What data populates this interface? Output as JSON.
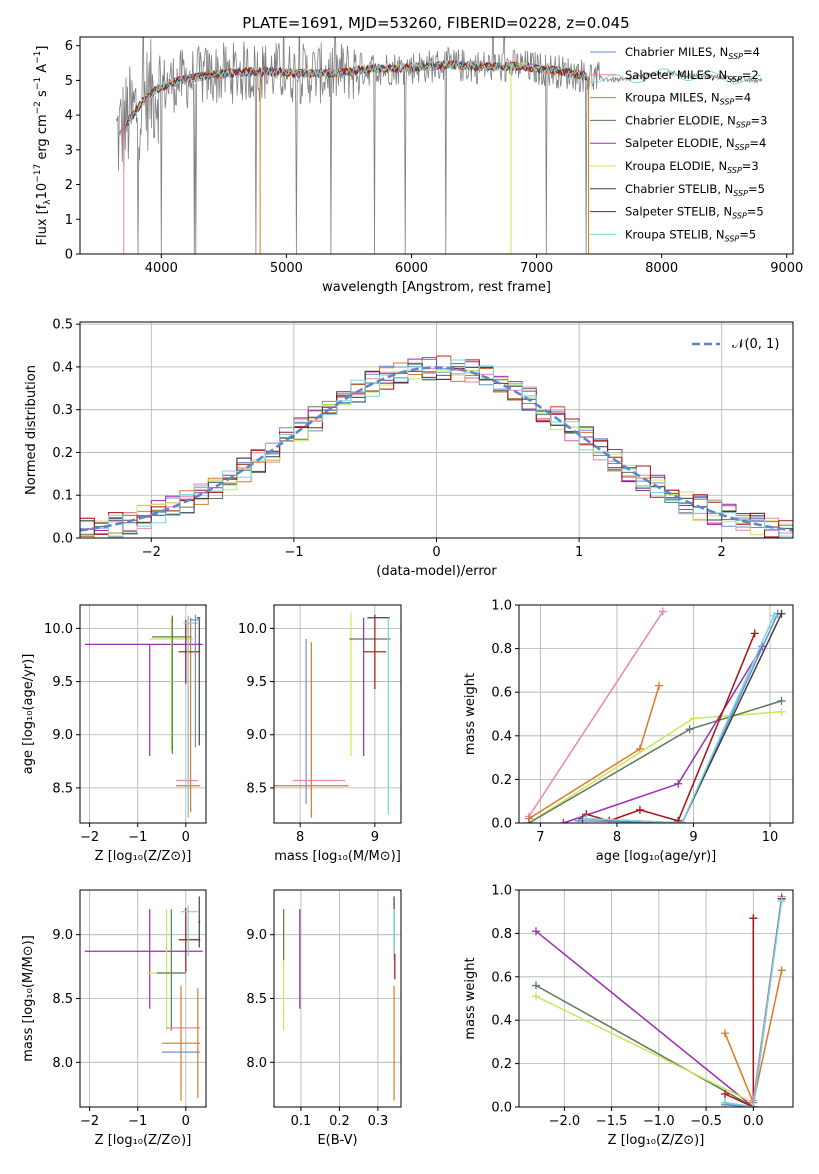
{
  "figure_title": "PLATE=1691, MJD=53260, FIBERID=0228, z=0.045",
  "colors": [
    "#6a8fd6",
    "#e884b8",
    "#d97a2a",
    "#5a7a5a",
    "#9b2fb0",
    "#c8e85a",
    "#404040",
    "#aa1111",
    "#7ad4dc"
  ],
  "chart_data": [
    {
      "id": "spectrum",
      "type": "line",
      "title": "PLATE=1691, MJD=53260, FIBERID=0228, z=0.045",
      "xlabel": "wavelength [Angstrom, rest frame]",
      "ylabel_parts": [
        "Flux [f",
        "λ",
        "10",
        "−17",
        " erg cm",
        "−2",
        " s",
        "−1",
        " A",
        "−1",
        "]"
      ],
      "xlim": [
        3350,
        9050
      ],
      "ylim": [
        0,
        6.25
      ],
      "xticks": [
        "4000",
        "5000",
        "6000",
        "7000",
        "8000",
        "9000"
      ],
      "yticks": [
        "0",
        "1",
        "2",
        "3",
        "4",
        "5",
        "6"
      ],
      "legend_position": "upper-right",
      "series": [
        {
          "name": "Chabrier MILES, N",
          "sub": "SSP",
          "suffix": "=4",
          "color": "#6a8fd6"
        },
        {
          "name": "Salpeter MILES, N",
          "sub": "SSP",
          "suffix": "=2",
          "color": "#e884b8"
        },
        {
          "name": "Kroupa MILES, N",
          "sub": "SSP",
          "suffix": "=4",
          "color": "#d97a2a"
        },
        {
          "name": "Chabrier ELODIE, N",
          "sub": "SSP",
          "suffix": "=3",
          "color": "#5a7a5a"
        },
        {
          "name": "Salpeter ELODIE, N",
          "sub": "SSP",
          "suffix": "=4",
          "color": "#9b2fb0"
        },
        {
          "name": "Kroupa ELODIE, N",
          "sub": "SSP",
          "suffix": "=3",
          "color": "#c8e85a"
        },
        {
          "name": "Chabrier STELIB, N",
          "sub": "SSP",
          "suffix": "=5",
          "color": "#404040"
        },
        {
          "name": "Salpeter STELIB, N",
          "sub": "SSP",
          "suffix": "=5",
          "color": "#aa1111"
        },
        {
          "name": "Kroupa STELIB, N",
          "sub": "SSP",
          "suffix": "=5",
          "color": "#7ad4dc"
        }
      ],
      "continuum": {
        "x": [
          3650,
          3750,
          3850,
          3950,
          4050,
          4150,
          4300,
          4500,
          4700,
          4900,
          5100,
          5300,
          5500,
          5700,
          5900,
          6100,
          6300,
          6500,
          6700,
          6900,
          7100,
          7300,
          7500,
          7700,
          7900,
          8100,
          8300,
          8500,
          8700,
          8800
        ],
        "y": [
          3.4,
          3.9,
          4.4,
          4.7,
          4.9,
          5.0,
          5.1,
          5.2,
          5.25,
          5.25,
          5.2,
          5.2,
          5.25,
          5.35,
          5.35,
          5.4,
          5.45,
          5.4,
          5.4,
          5.4,
          5.3,
          5.2,
          5.05,
          5.0,
          5.15,
          5.2,
          5.1,
          5.1,
          5.0,
          5.0
        ]
      }
    },
    {
      "id": "residuals",
      "type": "histogram",
      "xlabel": "(data-model)/error",
      "ylabel": "Normed distribution",
      "xlim": [
        -2.5,
        2.5
      ],
      "ylim": [
        0,
        0.505
      ],
      "xticks": [
        "−2",
        "−1",
        "0",
        "1",
        "2"
      ],
      "yticks": [
        "0.0",
        "0.1",
        "0.2",
        "0.3",
        "0.4",
        "0.5"
      ],
      "legend": "𝒩(0, 1)",
      "legend_position": "upper-right",
      "bin_width": 0.1,
      "bin_start": -2.5,
      "gaussian": {
        "mean": 0,
        "sigma": 1
      }
    },
    {
      "id": "age-vs-Z",
      "type": "errorbar",
      "xlabel": "Z [log₁₀(Z/Z⊙)]",
      "ylabel": "age  [log₁₀(age/yr)]",
      "xlim": [
        -2.2,
        0.42
      ],
      "ylim": [
        8.17,
        10.22
      ],
      "xticks": [
        "−2",
        "−1",
        "0"
      ],
      "yticks": [
        "8.5",
        "9.0",
        "9.5",
        "10.0"
      ],
      "points": [
        {
          "c": "#9b2fb0",
          "x": -0.75,
          "xerr": [
            1.35,
            1.1
          ],
          "y": 9.85,
          "yerr": [
            1.05,
            0
          ]
        },
        {
          "c": "#c8e85a",
          "x": -0.3,
          "xerr": [
            0.45,
            0.45
          ],
          "y": 9.9,
          "yerr": [
            1.05,
            0.2
          ]
        },
        {
          "c": "#5a7a5a",
          "x": -0.28,
          "xerr": [
            0.42,
            0.4
          ],
          "y": 9.92,
          "yerr": [
            1.1,
            0.2
          ]
        },
        {
          "c": "#e884b8",
          "x": 0.05,
          "xerr": [
            0.25,
            0.2
          ],
          "y": 8.57,
          "yerr": [
            0.35,
            1.55
          ]
        },
        {
          "c": "#d97a2a",
          "x": 0.1,
          "xerr": [
            0.3,
            0.2
          ],
          "y": 8.52,
          "yerr": [
            0.25,
            1.58
          ]
        },
        {
          "c": "#aa1111",
          "x": 0.0,
          "xerr": [
            0.15,
            0.3
          ],
          "y": 9.78,
          "yerr": [
            0.3,
            0.3
          ]
        },
        {
          "c": "#7ad4dc",
          "x": 0.05,
          "xerr": [
            0.1,
            0.2
          ],
          "y": 10.05,
          "yerr": [
            1.8,
            0.05
          ]
        },
        {
          "c": "#404040",
          "x": 0.28,
          "xerr": [
            0.05,
            0.02
          ],
          "y": 10.1,
          "yerr": [
            1.2,
            0.0
          ]
        },
        {
          "c": "#6a8fd6",
          "x": 0.2,
          "xerr": [
            0.1,
            0.1
          ],
          "y": 10.08,
          "yerr": [
            1.2,
            0.05
          ]
        }
      ]
    },
    {
      "id": "age-vs-mass",
      "type": "errorbar",
      "xlabel": "mass [log₁₀(M/M⊙)]",
      "ylabel": "",
      "xlim": [
        7.65,
        9.35
      ],
      "ylim": [
        8.17,
        10.22
      ],
      "xticks": [
        "8",
        "9"
      ],
      "yticks": [
        "8.5",
        "9.0",
        "9.5",
        "10.0"
      ],
      "points": [
        {
          "c": "#6a8fd6",
          "x": 8.08,
          "xerr": [
            0,
            0
          ],
          "y": 9.0,
          "yerr": [
            0.65,
            0.9
          ]
        },
        {
          "c": "#e884b8",
          "x": 8.25,
          "xerr": [
            0.35,
            0.35
          ],
          "y": 8.57,
          "yerr": [
            0,
            0
          ]
        },
        {
          "c": "#d97a2a",
          "x": 8.15,
          "xerr": [
            0.5,
            0.5
          ],
          "y": 8.52,
          "yerr": [
            0.3,
            1.35
          ]
        },
        {
          "c": "#c8e85a",
          "x": 8.68,
          "xerr": [
            0,
            0
          ],
          "y": 9.6,
          "yerr": [
            0.8,
            0.55
          ]
        },
        {
          "c": "#5a7a5a",
          "x": 8.96,
          "xerr": [
            0.3,
            0.25
          ],
          "y": 9.9,
          "yerr": [
            0,
            0
          ]
        },
        {
          "c": "#9b2fb0",
          "x": 8.85,
          "xerr": [
            0,
            0
          ],
          "y": 9.85,
          "yerr": [
            1.05,
            0.25
          ]
        },
        {
          "c": "#aa1111",
          "x": 9.0,
          "xerr": [
            0.15,
            0.15
          ],
          "y": 9.78,
          "yerr": [
            0.35,
            0.35
          ]
        },
        {
          "c": "#404040",
          "x": 9.05,
          "xerr": [
            0.15,
            0.15
          ],
          "y": 10.1,
          "yerr": [
            0,
            0
          ]
        },
        {
          "c": "#7ad4dc",
          "x": 9.18,
          "xerr": [
            0,
            0
          ],
          "y": 10.05,
          "yerr": [
            1.8,
            0.05
          ]
        }
      ]
    },
    {
      "id": "mass-weight-vs-age",
      "type": "line",
      "xlabel": "age  [log₁₀(age/yr)]",
      "ylabel": "mass weight",
      "xlim": [
        6.72,
        10.3
      ],
      "ylim": [
        0,
        1
      ],
      "xticks": [
        "7",
        "8",
        "9",
        "10"
      ],
      "yticks": [
        "0.0",
        "0.2",
        "0.4",
        "0.6",
        "0.8",
        "1.0"
      ],
      "series": [
        {
          "c": "#e884b8",
          "x": [
            6.85,
            8.6
          ],
          "y": [
            0.03,
            0.97
          ]
        },
        {
          "c": "#d97a2a",
          "x": [
            6.85,
            8.3,
            8.55
          ],
          "y": [
            0.02,
            0.34,
            0.63
          ]
        },
        {
          "c": "#c8e85a",
          "x": [
            6.85,
            9.0,
            10.15
          ],
          "y": [
            0.0,
            0.48,
            0.51
          ]
        },
        {
          "c": "#5a7a5a",
          "x": [
            6.85,
            8.95,
            10.15
          ],
          "y": [
            0.0,
            0.43,
            0.56
          ]
        },
        {
          "c": "#9b2fb0",
          "x": [
            7.3,
            8.8,
            9.9
          ],
          "y": [
            0.0,
            0.18,
            0.81
          ]
        },
        {
          "c": "#aa1111",
          "x": [
            7.6,
            7.9,
            8.3,
            8.8,
            9.8
          ],
          "y": [
            0.04,
            0.01,
            0.06,
            0.01,
            0.87
          ]
        },
        {
          "c": "#6a8fd6",
          "x": [
            7.5,
            8.85,
            10.1
          ],
          "y": [
            0.01,
            0.0,
            0.96
          ]
        },
        {
          "c": "#404040",
          "x": [
            7.55,
            8.85,
            10.15
          ],
          "y": [
            0.02,
            0.0,
            0.96
          ]
        },
        {
          "c": "#7ad4dc",
          "x": [
            7.6,
            8.85,
            10.05
          ],
          "y": [
            0.02,
            0.0,
            0.95
          ]
        }
      ]
    },
    {
      "id": "mass-vs-Z",
      "type": "errorbar",
      "xlabel": "Z [log₁₀(Z/Z⊙)]",
      "ylabel": "mass [log₁₀(M/M⊙)]",
      "xlim": [
        -2.2,
        0.42
      ],
      "ylim": [
        7.65,
        9.35
      ],
      "xticks": [
        "−2",
        "−1",
        "0"
      ],
      "yticks": [
        "8.0",
        "8.5",
        "9.0"
      ],
      "points": [
        {
          "c": "#9b2fb0",
          "x": -0.75,
          "xerr": [
            1.35,
            1.1
          ],
          "y": 8.87,
          "yerr": [
            0.45,
            0.33
          ]
        },
        {
          "c": "#c8e85a",
          "x": -0.4,
          "xerr": [
            0.4,
            0.4
          ],
          "y": 8.7,
          "yerr": [
            0.45,
            0.5
          ]
        },
        {
          "c": "#5a7a5a",
          "x": -0.3,
          "xerr": [
            0.3,
            0.3
          ],
          "y": 8.7,
          "yerr": [
            0.45,
            0.5
          ]
        },
        {
          "c": "#e884b8",
          "x": -0.05,
          "xerr": [
            0.35,
            0.35
          ],
          "y": 8.27,
          "yerr": [
            0,
            0
          ]
        },
        {
          "c": "#d97a2a",
          "x": -0.1,
          "xerr": [
            0.4,
            0.4
          ],
          "y": 8.15,
          "yerr": [
            0.45,
            0.45
          ]
        },
        {
          "c": "#6a8fd6",
          "x": -0.1,
          "xerr": [
            0.4,
            0.4
          ],
          "y": 8.08,
          "yerr": [
            0,
            0
          ]
        },
        {
          "c": "#aa1111",
          "x": 0.0,
          "xerr": [
            0.15,
            0.3
          ],
          "y": 8.96,
          "yerr": [
            0.25,
            0.25
          ]
        },
        {
          "c": "#7ad4dc",
          "x": 0.05,
          "xerr": [
            0.15,
            0.2
          ],
          "y": 9.18,
          "yerr": [
            0.35,
            0.05
          ]
        },
        {
          "c": "#404040",
          "x": 0.28,
          "xerr": [
            0.02,
            0.02
          ],
          "y": 9.1,
          "yerr": [
            0.2,
            0.2
          ]
        },
        {
          "c": "#d97a2a",
          "x": 0.25,
          "xerr": [
            0,
            0
          ],
          "y": 8.1,
          "yerr": [
            0.38,
            0.48
          ]
        }
      ]
    },
    {
      "id": "mass-vs-EBV",
      "type": "errorbar",
      "xlabel": "E(B-V)",
      "ylabel": "",
      "xlim": [
        0.03,
        0.36
      ],
      "ylim": [
        7.65,
        9.35
      ],
      "xticks": [
        "0.1",
        "0.2",
        "0.3"
      ],
      "yticks": [
        "8.0",
        "8.5",
        "9.0"
      ],
      "points": [
        {
          "c": "#c8e85a",
          "x": 0.055,
          "xerr": [
            0,
            0
          ],
          "y": 8.7,
          "yerr": [
            0.45,
            0.5
          ]
        },
        {
          "c": "#5a7a5a",
          "x": 0.055,
          "xerr": [
            0,
            0
          ],
          "y": 9.0,
          "yerr": [
            0.2,
            0.2
          ]
        },
        {
          "c": "#9b2fb0",
          "x": 0.097,
          "xerr": [
            0,
            0
          ],
          "y": 8.87,
          "yerr": [
            0.45,
            0.33
          ]
        },
        {
          "c": "#404040",
          "x": 0.342,
          "xerr": [
            0,
            0
          ],
          "y": 9.05,
          "yerr": [
            0.25,
            0.25
          ]
        },
        {
          "c": "#7ad4dc",
          "x": 0.342,
          "xerr": [
            0,
            0
          ],
          "y": 9.0,
          "yerr": [
            0.2,
            0.2
          ]
        },
        {
          "c": "#aa1111",
          "x": 0.344,
          "xerr": [
            0,
            0
          ],
          "y": 8.75,
          "yerr": [
            0.1,
            0.1
          ]
        },
        {
          "c": "#d97a2a",
          "x": 0.342,
          "xerr": [
            0,
            0
          ],
          "y": 8.15,
          "yerr": [
            0.45,
            0.45
          ]
        }
      ]
    },
    {
      "id": "mass-weight-vs-Z",
      "type": "line",
      "xlabel": "Z [log₁₀(Z/Z⊙)]",
      "ylabel": "mass weight",
      "xlim": [
        -2.48,
        0.42
      ],
      "ylim": [
        0,
        1
      ],
      "xticks": [
        "−2.0",
        "−1.5",
        "−1.0",
        "−0.5",
        "0.0"
      ],
      "yticks": [
        "0.0",
        "0.2",
        "0.4",
        "0.6",
        "0.8",
        "1.0"
      ],
      "series": [
        {
          "c": "#9b2fb0",
          "x": [
            -2.3,
            0.0
          ],
          "y": [
            0.81,
            0.0
          ]
        },
        {
          "c": "#5a7a5a",
          "x": [
            -2.3,
            0.0
          ],
          "y": [
            0.56,
            0.0
          ]
        },
        {
          "c": "#c8e85a",
          "x": [
            -2.3,
            0.0
          ],
          "y": [
            0.51,
            0.02
          ]
        },
        {
          "c": "#d97a2a",
          "x": [
            -0.3,
            0.0,
            0.3
          ],
          "y": [
            0.34,
            0.02,
            0.63
          ]
        },
        {
          "c": "#aa1111",
          "x": [
            -0.3,
            0.0,
            0.0
          ],
          "y": [
            0.06,
            0.0,
            0.87
          ]
        },
        {
          "c": "#e884b8",
          "x": [
            0.0,
            0.3
          ],
          "y": [
            0.03,
            0.97
          ]
        },
        {
          "c": "#6a8fd6",
          "x": [
            -0.3,
            0.0,
            0.3
          ],
          "y": [
            0.01,
            0.0,
            0.96
          ]
        },
        {
          "c": "#404040",
          "x": [
            -0.3,
            0.0,
            0.3
          ],
          "y": [
            0.02,
            0.0,
            0.96
          ]
        },
        {
          "c": "#7ad4dc",
          "x": [
            -0.3,
            0.0,
            0.3
          ],
          "y": [
            0.02,
            0.0,
            0.95
          ]
        }
      ]
    }
  ]
}
